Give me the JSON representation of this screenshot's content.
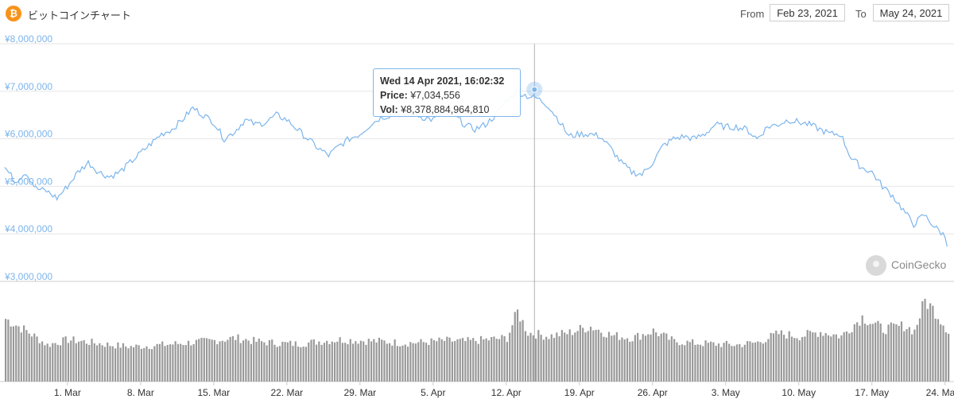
{
  "header": {
    "title": "ビットコインチャート",
    "coin_symbol": "₿",
    "from_label": "From",
    "from_value": "Feb 23, 2021",
    "to_label": "To",
    "to_value": "May 24, 2021",
    "brand_color": "#f7931a"
  },
  "tooltip": {
    "date": "Wed 14 Apr 2021, 16:02:32",
    "price_label": "Price:",
    "price_value": "¥7,034,556",
    "vol_label": "Vol:",
    "vol_value": "¥8,378,884,964,810"
  },
  "watermark": {
    "text": "CoinGecko",
    "icon": "gecko-icon"
  },
  "chart_data": {
    "type": "line",
    "title": "ビットコインチャート",
    "line_color": "#7cb5ec",
    "volume_color": "#999999",
    "y_ticks": [
      "¥3,000,000",
      "¥4,000,000",
      "¥5,000,000",
      "¥6,000,000",
      "¥7,000,000",
      "¥8,000,000"
    ],
    "y_tick_values": [
      3000000,
      4000000,
      5000000,
      6000000,
      7000000,
      8000000
    ],
    "ylim": [
      3000000,
      8000000
    ],
    "x_ticks": [
      "1. Mar",
      "8. Mar",
      "15. Mar",
      "22. Mar",
      "29. Mar",
      "5. Apr",
      "12. Apr",
      "19. Apr",
      "26. Apr",
      "3. May",
      "10. May",
      "17. May",
      "24. May"
    ],
    "x_tick_days": [
      6,
      13,
      20,
      27,
      34,
      41,
      48,
      55,
      62,
      69,
      76,
      83,
      90
    ],
    "xlim_days": [
      0,
      90.4
    ],
    "grid": true,
    "legend": "none",
    "price_series": {
      "name": "Price",
      "x_days": [
        0,
        1,
        2,
        3,
        4,
        5,
        6,
        7,
        8,
        9,
        10,
        11,
        12,
        13,
        14,
        15,
        16,
        17,
        18,
        19,
        20,
        21,
        22,
        23,
        24,
        25,
        26,
        27,
        28,
        29,
        30,
        31,
        32,
        33,
        34,
        35,
        36,
        37,
        38,
        39,
        40,
        41,
        42,
        43,
        44,
        45,
        46,
        47,
        48,
        49,
        50,
        51,
        52,
        53,
        54,
        55,
        56,
        57,
        58,
        59,
        60,
        61,
        62,
        63,
        64,
        65,
        66,
        67,
        68,
        69,
        70,
        71,
        72,
        73,
        74,
        75,
        76,
        77,
        78,
        79,
        80,
        81,
        82,
        83,
        84,
        85,
        86,
        87,
        88,
        89,
        90,
        90.4
      ],
      "values": [
        5400000,
        5100000,
        5300000,
        4950000,
        4900000,
        4750000,
        5000000,
        5300000,
        5500000,
        5300000,
        5200000,
        5300000,
        5500000,
        5700000,
        5900000,
        6100000,
        6200000,
        6400000,
        6650000,
        6500000,
        6350000,
        6000000,
        6150000,
        6400000,
        6300000,
        6350000,
        6500000,
        6400000,
        6200000,
        6000000,
        5800000,
        5650000,
        5850000,
        6000000,
        6100000,
        6300000,
        6450000,
        6500000,
        6600000,
        6550000,
        6450000,
        6400000,
        6550000,
        6500000,
        6300000,
        6200000,
        6300000,
        6500000,
        6800000,
        7000000,
        6900000,
        6850000,
        6700000,
        6400000,
        6050000,
        6100000,
        6100000,
        6050000,
        5800000,
        5500000,
        5300000,
        5250000,
        5500000,
        5850000,
        6000000,
        6050000,
        6000000,
        6100000,
        6300000,
        6250000,
        6250000,
        6200000,
        6000000,
        6250000,
        6300000,
        6400000,
        6350000,
        6300000,
        6200000,
        6100000,
        6100000,
        5600000,
        5400000,
        5300000,
        5000000,
        4800000,
        4500000,
        4200000,
        4400000,
        4150000,
        3950000,
        3650000
      ]
    },
    "volume_series": {
      "name": "Vol",
      "x_days": [
        0,
        2,
        4,
        6,
        8,
        10,
        12,
        14,
        16,
        18,
        20,
        22,
        24,
        26,
        28,
        30,
        32,
        34,
        36,
        38,
        40,
        42,
        44,
        46,
        48,
        49,
        50,
        52,
        54,
        55,
        56,
        58,
        60,
        62,
        64,
        66,
        68,
        70,
        72,
        74,
        76,
        78,
        80,
        82,
        84,
        86,
        87,
        88,
        89,
        90,
        90.4
      ],
      "relative_values": [
        0.72,
        0.58,
        0.42,
        0.48,
        0.45,
        0.42,
        0.4,
        0.41,
        0.43,
        0.45,
        0.47,
        0.5,
        0.46,
        0.44,
        0.43,
        0.46,
        0.48,
        0.47,
        0.46,
        0.44,
        0.45,
        0.47,
        0.46,
        0.48,
        0.5,
        0.8,
        0.56,
        0.52,
        0.56,
        0.6,
        0.63,
        0.53,
        0.5,
        0.58,
        0.46,
        0.44,
        0.43,
        0.42,
        0.45,
        0.55,
        0.52,
        0.57,
        0.52,
        0.74,
        0.6,
        0.64,
        0.58,
        0.93,
        0.8,
        0.62,
        0.55
      ]
    }
  }
}
